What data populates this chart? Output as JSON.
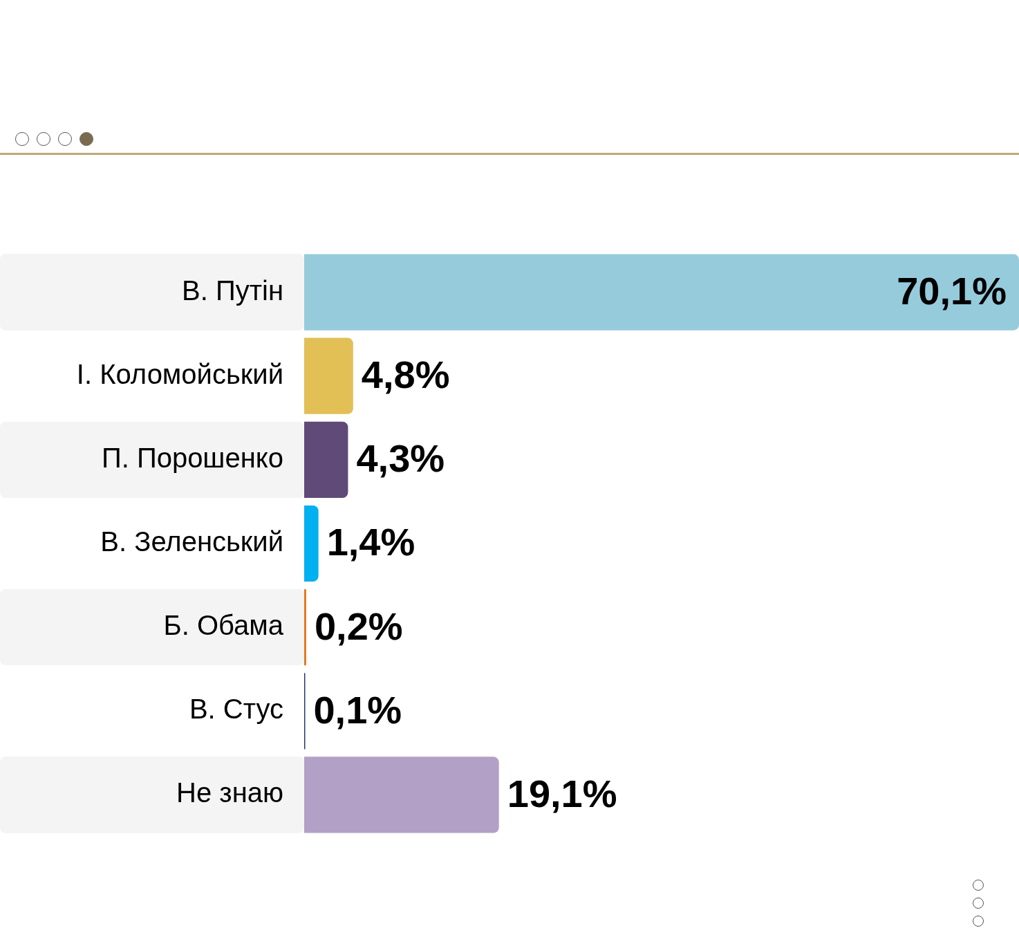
{
  "chart_data": {
    "type": "bar",
    "orientation": "horizontal",
    "tick_labels": "y",
    "categories": [
      "В. Путін",
      "І. Коломойський",
      "П. Порошенко",
      "В. Зеленський",
      "Б. Обама",
      "В. Стус",
      "Не знаю"
    ],
    "values": [
      70.1,
      4.8,
      4.3,
      1.4,
      0.2,
      0.1,
      19.1
    ],
    "colors": [
      "#96cbdc",
      "#e2c056",
      "#604a78",
      "#00b0f0",
      "#e07a20",
      "#1f3864",
      "#b2a0c6"
    ],
    "value_labels": [
      "70,1%",
      "4,8%",
      "4,3%",
      "1,4%",
      "0,2%",
      "0,1%",
      "19,1%"
    ],
    "legend": false
  }
}
